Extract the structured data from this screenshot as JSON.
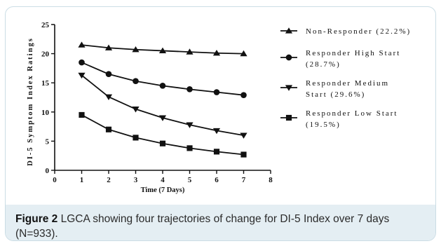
{
  "figure": {
    "label": "Figure 2",
    "caption": "LGCA showing four trajectories of change for DI-5 Index over 7 days (N=933)."
  },
  "chart_data": {
    "type": "line",
    "title": "",
    "xlabel": "Time (7 Days)",
    "ylabel": "DI-5 Symptom Index Ratings",
    "xlim": [
      0,
      8
    ],
    "ylim": [
      0,
      25
    ],
    "x_ticks": [
      "0",
      "1",
      "2",
      "3",
      "4",
      "5",
      "6",
      "7",
      "8"
    ],
    "y_ticks": [
      "0",
      "5",
      "10",
      "15",
      "20",
      "25"
    ],
    "grid": false,
    "legend_position": "right",
    "x": [
      1,
      2,
      3,
      4,
      5,
      6,
      7
    ],
    "series": [
      {
        "name": "Non-Responder (22.2%)",
        "legend_lines": [
          "Non-Responder (22.2%)"
        ],
        "marker": "triangle-up",
        "values": [
          21.5,
          21.0,
          20.7,
          20.5,
          20.3,
          20.1,
          20.0
        ]
      },
      {
        "name": "Responder High Start (28.7%)",
        "legend_lines": [
          "Responder High Start",
          "(28.7%)"
        ],
        "marker": "circle",
        "values": [
          18.5,
          16.5,
          15.3,
          14.5,
          13.9,
          13.4,
          12.9
        ]
      },
      {
        "name": "Responder Medium Start (29.6%)",
        "legend_lines": [
          "Responder Medium",
          "Start (29.6%)"
        ],
        "marker": "triangle-down",
        "values": [
          16.3,
          12.6,
          10.5,
          9.0,
          7.8,
          6.8,
          6.0
        ]
      },
      {
        "name": "Responder Low Start (19.5%)",
        "legend_lines": [
          "Responder Low Start",
          "(19.5%)"
        ],
        "marker": "square",
        "values": [
          9.5,
          7.0,
          5.6,
          4.6,
          3.8,
          3.2,
          2.7
        ]
      }
    ]
  }
}
